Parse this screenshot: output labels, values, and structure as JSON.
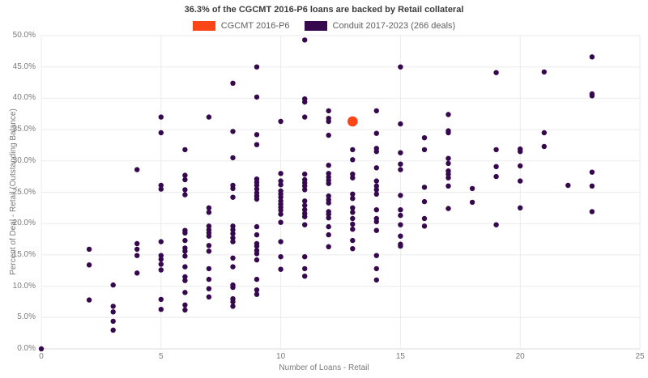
{
  "chart": {
    "title": "36.3% of the CGCMT 2016-P6 loans are backed by Retail collateral",
    "legend": [
      {
        "label": "CGCMT 2016-P6",
        "color": "#fa4616"
      },
      {
        "label": "Conduit 2017-2023 (266 deals)",
        "color": "#36084e"
      }
    ]
  },
  "chart_data": {
    "type": "scatter",
    "title": "36.3% of the CGCMT 2016-P6 loans are backed by Retail collateral",
    "xlabel": "Number of Loans - Retail",
    "ylabel": "Percent of Deal - Retail (Outstanding Balance)",
    "xlim": [
      0,
      25
    ],
    "ylim": [
      0,
      50
    ],
    "grid": true,
    "legend_position": "top-center",
    "xticks": [
      {
        "v": 0,
        "label": "0"
      },
      {
        "v": 5,
        "label": "5"
      },
      {
        "v": 10,
        "label": "10"
      },
      {
        "v": 15,
        "label": "15"
      },
      {
        "v": 20,
        "label": "20"
      },
      {
        "v": 25,
        "label": "25"
      }
    ],
    "yticks": [
      {
        "v": 0,
        "label": "0.0%"
      },
      {
        "v": 5,
        "label": "5.0%"
      },
      {
        "v": 10,
        "label": "10.0%"
      },
      {
        "v": 15,
        "label": "15.0%"
      },
      {
        "v": 20,
        "label": "20.0%"
      },
      {
        "v": 25,
        "label": "25.0%"
      },
      {
        "v": 30,
        "label": "30.0%"
      },
      {
        "v": 35,
        "label": "35.0%"
      },
      {
        "v": 40,
        "label": "40.0%"
      },
      {
        "v": 45,
        "label": "45.0%"
      },
      {
        "v": 50,
        "label": "50.0%"
      }
    ],
    "series": [
      {
        "name": "Conduit 2017-2023 (266 deals)",
        "color": "#36084e",
        "marker_radius": 3.2,
        "points": [
          [
            0,
            0
          ],
          [
            2,
            15.9
          ],
          [
            2,
            13.4
          ],
          [
            2,
            7.8
          ],
          [
            3,
            10.2
          ],
          [
            3,
            6.8
          ],
          [
            3,
            5.9
          ],
          [
            3,
            4.4
          ],
          [
            3,
            3.0
          ],
          [
            4,
            28.6
          ],
          [
            4,
            16.8
          ],
          [
            4,
            15.9
          ],
          [
            4,
            14.9
          ],
          [
            4,
            12.1
          ],
          [
            5,
            37.0
          ],
          [
            5,
            34.5
          ],
          [
            5,
            26.1
          ],
          [
            5,
            25.5
          ],
          [
            5,
            17.1
          ],
          [
            5,
            14.9
          ],
          [
            5,
            14.3
          ],
          [
            5,
            13.5
          ],
          [
            5,
            12.6
          ],
          [
            5,
            7.9
          ],
          [
            5,
            6.3
          ],
          [
            6,
            31.8
          ],
          [
            6,
            27.7
          ],
          [
            6,
            27.0
          ],
          [
            6,
            25.4
          ],
          [
            6,
            24.6
          ],
          [
            6,
            18.9
          ],
          [
            6,
            18.5
          ],
          [
            6,
            17.3
          ],
          [
            6,
            16.1
          ],
          [
            6,
            15.6
          ],
          [
            6,
            14.8
          ],
          [
            6,
            13.1
          ],
          [
            6,
            11.5
          ],
          [
            6,
            10.9
          ],
          [
            6,
            9.0
          ],
          [
            6,
            7.0
          ],
          [
            6,
            6.2
          ],
          [
            7,
            37.0
          ],
          [
            7,
            22.5
          ],
          [
            7,
            21.8
          ],
          [
            7,
            19.6
          ],
          [
            7,
            19.0
          ],
          [
            7,
            18.5
          ],
          [
            7,
            18.0
          ],
          [
            7,
            16.5
          ],
          [
            7,
            15.6
          ],
          [
            7,
            12.8
          ],
          [
            7,
            11.1
          ],
          [
            7,
            9.6
          ],
          [
            7,
            8.3
          ],
          [
            8,
            42.4
          ],
          [
            8,
            34.7
          ],
          [
            8,
            30.5
          ],
          [
            8,
            26.1
          ],
          [
            8,
            25.6
          ],
          [
            8,
            24.2
          ],
          [
            8,
            19.6
          ],
          [
            8,
            19.0
          ],
          [
            8,
            18.4
          ],
          [
            8,
            17.7
          ],
          [
            8,
            17.1
          ],
          [
            8,
            14.5
          ],
          [
            8,
            13.1
          ],
          [
            8,
            10.2
          ],
          [
            8,
            9.8
          ],
          [
            8,
            8.0
          ],
          [
            8,
            7.5
          ],
          [
            8,
            6.8
          ],
          [
            9,
            45.0
          ],
          [
            9,
            40.2
          ],
          [
            9,
            34.2
          ],
          [
            9,
            32.6
          ],
          [
            9,
            27.1
          ],
          [
            9,
            26.6
          ],
          [
            9,
            26.1
          ],
          [
            9,
            25.5
          ],
          [
            9,
            24.9
          ],
          [
            9,
            24.4
          ],
          [
            9,
            23.9
          ],
          [
            9,
            19.5
          ],
          [
            9,
            18.2
          ],
          [
            9,
            16.8
          ],
          [
            9,
            16.4
          ],
          [
            9,
            15.7
          ],
          [
            9,
            15.2
          ],
          [
            9,
            14.2
          ],
          [
            9,
            11.1
          ],
          [
            9,
            9.4
          ],
          [
            9,
            8.7
          ],
          [
            10,
            36.3
          ],
          [
            10,
            28.0
          ],
          [
            10,
            26.8
          ],
          [
            10,
            26.2
          ],
          [
            10,
            25.2
          ],
          [
            10,
            24.7
          ],
          [
            10,
            24.2
          ],
          [
            10,
            23.6
          ],
          [
            10,
            23.1
          ],
          [
            10,
            22.6
          ],
          [
            10,
            22.1
          ],
          [
            10,
            21.5
          ],
          [
            10,
            20.2
          ],
          [
            10,
            17.1
          ],
          [
            10,
            14.7
          ],
          [
            10,
            12.7
          ],
          [
            11,
            49.3
          ],
          [
            11,
            39.9
          ],
          [
            11,
            39.4
          ],
          [
            11,
            37.0
          ],
          [
            11,
            27.9
          ],
          [
            11,
            27.0
          ],
          [
            11,
            26.5
          ],
          [
            11,
            26.0
          ],
          [
            11,
            25.4
          ],
          [
            11,
            23.6
          ],
          [
            11,
            22.9
          ],
          [
            11,
            22.2
          ],
          [
            11,
            21.6
          ],
          [
            11,
            21.1
          ],
          [
            11,
            19.8
          ],
          [
            11,
            14.7
          ],
          [
            11,
            12.8
          ],
          [
            11,
            11.6
          ],
          [
            12,
            38.0
          ],
          [
            12,
            36.8
          ],
          [
            12,
            36.3
          ],
          [
            12,
            34.1
          ],
          [
            12,
            29.3
          ],
          [
            12,
            28.0
          ],
          [
            12,
            27.4
          ],
          [
            12,
            26.9
          ],
          [
            12,
            26.4
          ],
          [
            12,
            24.4
          ],
          [
            12,
            23.8
          ],
          [
            12,
            23.3
          ],
          [
            12,
            21.9
          ],
          [
            12,
            21.5
          ],
          [
            12,
            20.9
          ],
          [
            12,
            19.5
          ],
          [
            12,
            18.2
          ],
          [
            12,
            16.3
          ],
          [
            13,
            31.8
          ],
          [
            13,
            30.2
          ],
          [
            13,
            27.9
          ],
          [
            13,
            27.3
          ],
          [
            13,
            24.7
          ],
          [
            13,
            24.0
          ],
          [
            13,
            22.5
          ],
          [
            13,
            21.8
          ],
          [
            13,
            20.8
          ],
          [
            13,
            19.9
          ],
          [
            13,
            19.1
          ],
          [
            13,
            17.3
          ],
          [
            13,
            16.0
          ],
          [
            14,
            38.0
          ],
          [
            14,
            34.4
          ],
          [
            14,
            32.0
          ],
          [
            14,
            31.5
          ],
          [
            14,
            28.9
          ],
          [
            14,
            26.8
          ],
          [
            14,
            26.0
          ],
          [
            14,
            25.4
          ],
          [
            14,
            24.7
          ],
          [
            14,
            22.2
          ],
          [
            14,
            20.8
          ],
          [
            14,
            20.3
          ],
          [
            14,
            18.9
          ],
          [
            14,
            14.9
          ],
          [
            14,
            12.8
          ],
          [
            14,
            11.0
          ],
          [
            15,
            45.0
          ],
          [
            15,
            35.9
          ],
          [
            15,
            31.3
          ],
          [
            15,
            29.5
          ],
          [
            15,
            28.6
          ],
          [
            15,
            24.5
          ],
          [
            15,
            22.2
          ],
          [
            15,
            21.3
          ],
          [
            15,
            19.8
          ],
          [
            15,
            18.0
          ],
          [
            15,
            16.7
          ],
          [
            15,
            16.4
          ],
          [
            16,
            33.7
          ],
          [
            16,
            31.8
          ],
          [
            16,
            25.8
          ],
          [
            16,
            23.5
          ],
          [
            16,
            20.8
          ],
          [
            16,
            19.6
          ],
          [
            17,
            37.4
          ],
          [
            17,
            34.8
          ],
          [
            17,
            34.5
          ],
          [
            17,
            30.4
          ],
          [
            17,
            29.6
          ],
          [
            17,
            28.4
          ],
          [
            17,
            27.9
          ],
          [
            17,
            27.3
          ],
          [
            17,
            26.0
          ],
          [
            17,
            22.4
          ],
          [
            18,
            25.6
          ],
          [
            18,
            23.4
          ],
          [
            19,
            44.1
          ],
          [
            19,
            31.8
          ],
          [
            19,
            29.1
          ],
          [
            19,
            27.5
          ],
          [
            19,
            19.8
          ],
          [
            20,
            31.9
          ],
          [
            20,
            31.5
          ],
          [
            20,
            29.2
          ],
          [
            20,
            26.8
          ],
          [
            20,
            22.5
          ],
          [
            21,
            44.2
          ],
          [
            21,
            34.5
          ],
          [
            21,
            32.3
          ],
          [
            22,
            26.1
          ],
          [
            23,
            46.6
          ],
          [
            23,
            40.7
          ],
          [
            23,
            40.4
          ],
          [
            23,
            28.2
          ],
          [
            23,
            26.0
          ],
          [
            23,
            21.9
          ]
        ]
      },
      {
        "name": "CGCMT 2016-P6",
        "color": "#fa4616",
        "marker_radius": 6.3,
        "points": [
          [
            13,
            36.3
          ]
        ]
      }
    ],
    "colors": {
      "gridline": "#ebebeb",
      "axis_line": "#d9d9d9",
      "tick_label": "#7a7a7a",
      "title": "#3d3d3d"
    }
  }
}
